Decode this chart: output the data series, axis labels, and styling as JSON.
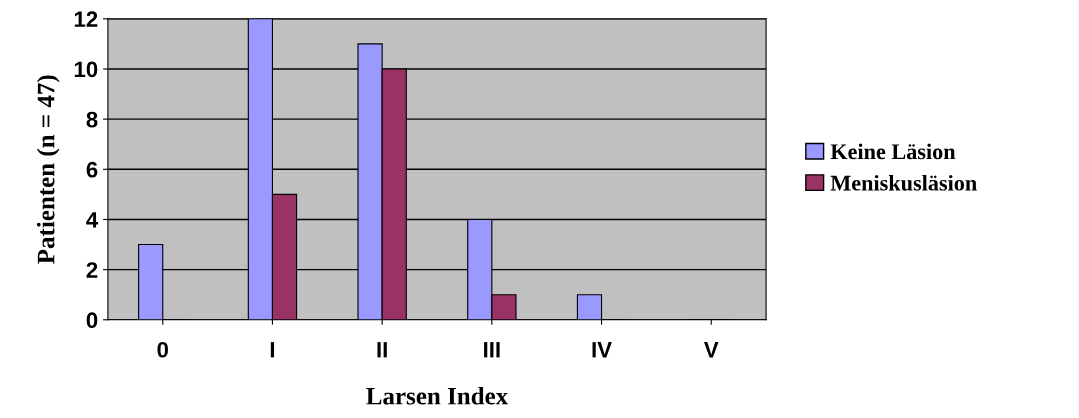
{
  "chart_data": {
    "type": "bar",
    "xlabel": "Larsen Index",
    "ylabel": "Patienten (n = 47)",
    "categories": [
      "0",
      "I",
      "II",
      "III",
      "IV",
      "V"
    ],
    "series": [
      {
        "name": "Keine Läsion",
        "color": "#9999ff",
        "values": [
          3,
          12,
          11,
          4,
          1,
          0
        ]
      },
      {
        "name": "Meniskusläsion",
        "color": "#993366",
        "values": [
          0,
          5,
          10,
          1,
          0,
          0
        ]
      }
    ],
    "ylim": [
      0,
      12
    ],
    "yticks": [
      0,
      2,
      4,
      6,
      8,
      10,
      12
    ],
    "grid": "y",
    "legend": "right"
  }
}
